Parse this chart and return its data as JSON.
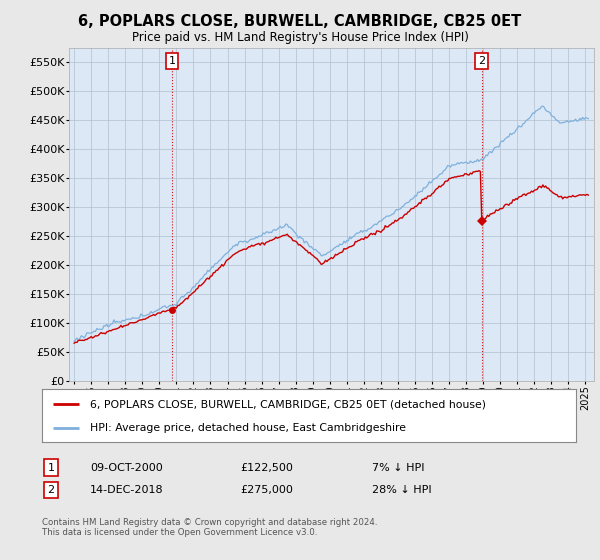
{
  "title": "6, POPLARS CLOSE, BURWELL, CAMBRIDGE, CB25 0ET",
  "subtitle": "Price paid vs. HM Land Registry's House Price Index (HPI)",
  "hpi_color": "#7fb0dc",
  "price_color": "#cc0000",
  "vline_color": "#cc0000",
  "background_color": "#e8e8e8",
  "plot_bg_color": "#dce8f5",
  "ylim": [
    0,
    575000
  ],
  "yticks": [
    0,
    50000,
    100000,
    150000,
    200000,
    250000,
    300000,
    350000,
    400000,
    450000,
    500000,
    550000
  ],
  "t1_year": 2000.75,
  "t2_year": 2018.917,
  "price1": 122500,
  "price2": 275000,
  "transaction1": {
    "date": "09-OCT-2000",
    "price": 122500,
    "label": "1",
    "pct": "7%",
    "direction": "↓"
  },
  "transaction2": {
    "date": "14-DEC-2018",
    "price": 275000,
    "label": "2",
    "pct": "28%",
    "direction": "↓"
  },
  "legend_line1": "6, POPLARS CLOSE, BURWELL, CAMBRIDGE, CB25 0ET (detached house)",
  "legend_line2": "HPI: Average price, detached house, East Cambridgeshire",
  "footnote": "Contains HM Land Registry data © Crown copyright and database right 2024.\nThis data is licensed under the Open Government Licence v3.0."
}
